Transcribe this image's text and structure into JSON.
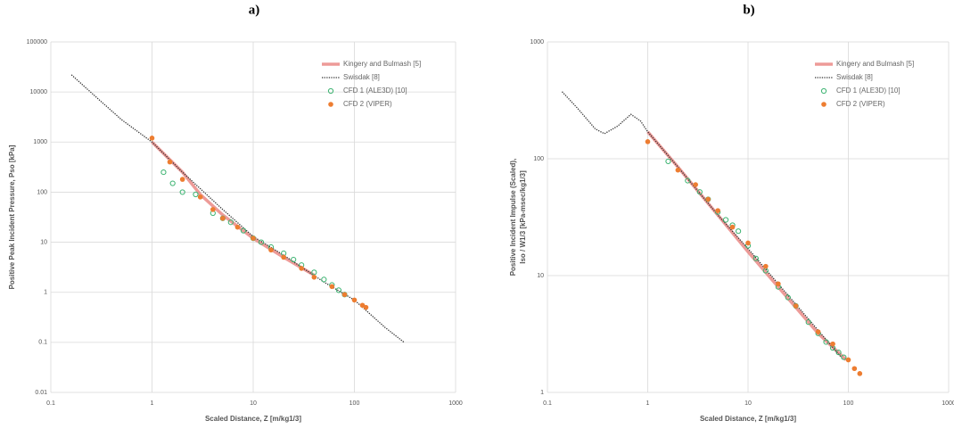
{
  "chart_data": [
    {
      "type": "scatter",
      "panel": "a)",
      "xlabel": "Scaled Distance, Z [m/kg1/3]",
      "ylabel": "Positive Peak Incident Pressure, Pso [kPa]",
      "xscale": "log",
      "yscale": "log",
      "xlim": [
        0.1,
        1000
      ],
      "ylim": [
        0.01,
        100000
      ],
      "xticks": [
        0.1,
        1,
        10,
        100,
        1000
      ],
      "yticks": [
        0.01,
        0.1,
        1,
        10,
        100,
        1000,
        10000,
        100000
      ],
      "grid": true,
      "legend": "upper right",
      "series": [
        {
          "name": "Kingery and Bulmash [5]",
          "color": "#e8827e",
          "style": "line",
          "x": [
            1,
            2,
            3,
            5,
            10,
            20,
            40
          ],
          "values": [
            1000,
            250,
            90,
            35,
            12,
            5,
            2.2
          ]
        },
        {
          "name": "Swisdak [8]",
          "color": "#333333",
          "style": "dotted",
          "x": [
            0.16,
            0.3,
            0.5,
            1,
            2,
            5,
            10,
            20,
            50,
            100,
            200,
            310
          ],
          "values": [
            22000,
            7000,
            2800,
            1000,
            250,
            45,
            13,
            5.5,
            1.6,
            0.7,
            0.2,
            0.1
          ]
        },
        {
          "name": "CFD 1 (ALE3D) [10]",
          "color": "#3cb371",
          "style": "hollow",
          "x": [
            1.3,
            1.6,
            2,
            2.7,
            4,
            5,
            6,
            8,
            10,
            12,
            15,
            20,
            25,
            30,
            40,
            50,
            60,
            70,
            80
          ],
          "values": [
            250,
            150,
            100,
            90,
            38,
            30,
            25,
            17,
            12,
            10,
            8,
            6,
            4.5,
            3.5,
            2.5,
            1.8,
            1.4,
            1.1,
            0.9
          ]
        },
        {
          "name": "CFD 2 (VIPER)",
          "color": "#ed7d31",
          "style": "filled",
          "x": [
            1,
            1.5,
            2,
            3,
            4,
            5,
            7,
            10,
            15,
            20,
            30,
            40,
            60,
            80,
            100,
            120,
            130
          ],
          "values": [
            1200,
            400,
            180,
            80,
            45,
            30,
            20,
            12,
            7,
            5,
            3,
            2,
            1.3,
            0.9,
            0.7,
            0.55,
            0.5
          ]
        }
      ]
    },
    {
      "type": "scatter",
      "panel": "b)",
      "xlabel": "Scaled Distance, Z [m/kg1/3]",
      "ylabel": [
        "Positive Incident Impulse (Scaled),",
        "Iso / W1/3 [kPa-msec/kg1/3]"
      ],
      "xscale": "log",
      "yscale": "log",
      "xlim": [
        0.1,
        1000
      ],
      "ylim": [
        1,
        1000
      ],
      "xticks": [
        0.1,
        1,
        10,
        100,
        1000
      ],
      "yticks": [
        1,
        10,
        100,
        1000
      ],
      "grid": true,
      "legend": "upper right",
      "series": [
        {
          "name": "Kingery and Bulmash [5]",
          "color": "#e8827e",
          "style": "line",
          "x": [
            1,
            2,
            5,
            10,
            20,
            50,
            95
          ],
          "values": [
            170,
            85,
            33,
            16,
            8,
            3.2,
            1.9
          ]
        },
        {
          "name": "Swisdak [8]",
          "color": "#333333",
          "style": "dotted",
          "x": [
            0.14,
            0.2,
            0.3,
            0.37,
            0.5,
            0.68,
            0.85,
            1,
            2,
            5,
            10,
            20,
            50,
            85
          ],
          "values": [
            375,
            270,
            180,
            164,
            190,
            240,
            210,
            170,
            85,
            33,
            17,
            8.5,
            3.4,
            2
          ]
        },
        {
          "name": "CFD 1 (ALE3D) [10]",
          "color": "#3cb371",
          "style": "hollow",
          "x": [
            1.6,
            2.5,
            3.3,
            4,
            5,
            6,
            7,
            8,
            10,
            12,
            15,
            20,
            25,
            30,
            40,
            50,
            60,
            70,
            80,
            90
          ],
          "values": [
            95,
            65,
            52,
            45,
            35,
            30,
            27,
            24,
            18,
            14,
            11,
            8,
            6.5,
            5.5,
            4,
            3.2,
            2.7,
            2.4,
            2.2,
            2
          ]
        },
        {
          "name": "CFD 2 (VIPER)",
          "color": "#ed7d31",
          "style": "filled",
          "x": [
            1,
            2,
            3,
            4,
            5,
            7,
            10,
            15,
            20,
            30,
            50,
            70,
            100,
            115,
            130
          ],
          "values": [
            140,
            80,
            60,
            45,
            36,
            26,
            19,
            12,
            8.5,
            5.5,
            3.3,
            2.6,
            1.9,
            1.6,
            1.45
          ]
        }
      ]
    }
  ]
}
